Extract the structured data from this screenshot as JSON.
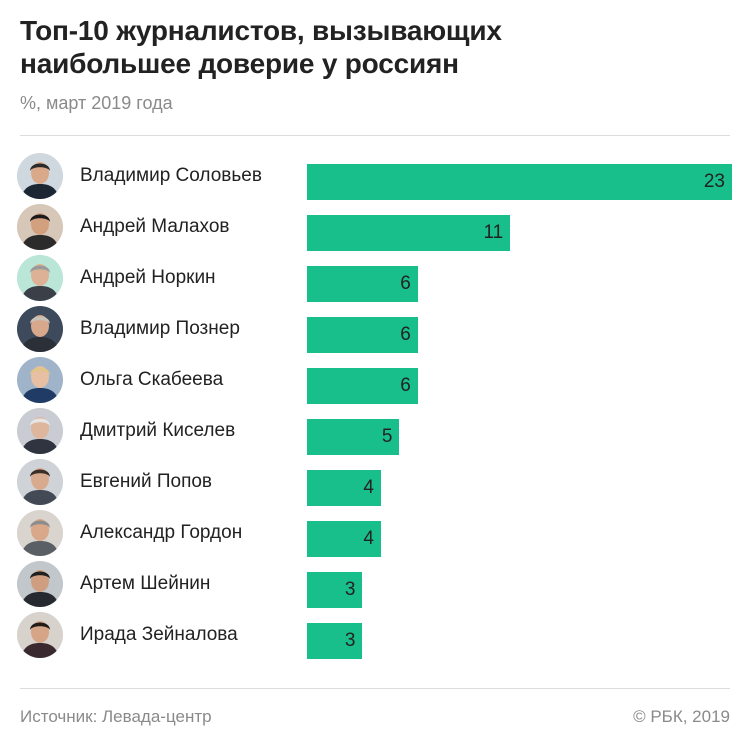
{
  "title_line1": "Топ-10 журналистов, вызывающих",
  "title_line2": "наибольшее доверие у россиян",
  "subtitle": "%, март 2019 года",
  "source": "Источник: Левада-центр",
  "copyright": "© РБК, 2019",
  "colors": {
    "bar": "#19bf8a",
    "text": "#222222",
    "muted": "#8a8a8a"
  },
  "chart_data": {
    "type": "bar",
    "orientation": "horizontal",
    "title": "Топ-10 журналистов, вызывающих наибольшее доверие у россиян",
    "subtitle": "%, март 2019 года",
    "categories": [
      "Владимир Соловьев",
      "Андрей Малахов",
      "Андрей Норкин",
      "Владимир Познер",
      "Ольга Скабеева",
      "Дмитрий Киселев",
      "Евгений Попов",
      "Александр Гордон",
      "Артем Шейнин",
      "Ирада Зейналова"
    ],
    "values": [
      23,
      11,
      6,
      6,
      6,
      5,
      4,
      4,
      3,
      3
    ],
    "xlim": [
      0,
      23
    ],
    "grid": false,
    "legend": "none",
    "data_labels": "inside-end",
    "avatar_icons": [
      "portrait-dark-suit-icon",
      "portrait-dark-hair-icon",
      "portrait-grey-hair-icon",
      "portrait-bald-icon",
      "portrait-blonde-icon",
      "portrait-white-hair-icon",
      "portrait-short-hair-icon",
      "portrait-grey-beard-icon",
      "portrait-dark-beard-icon",
      "portrait-dark-curly-icon"
    ]
  }
}
